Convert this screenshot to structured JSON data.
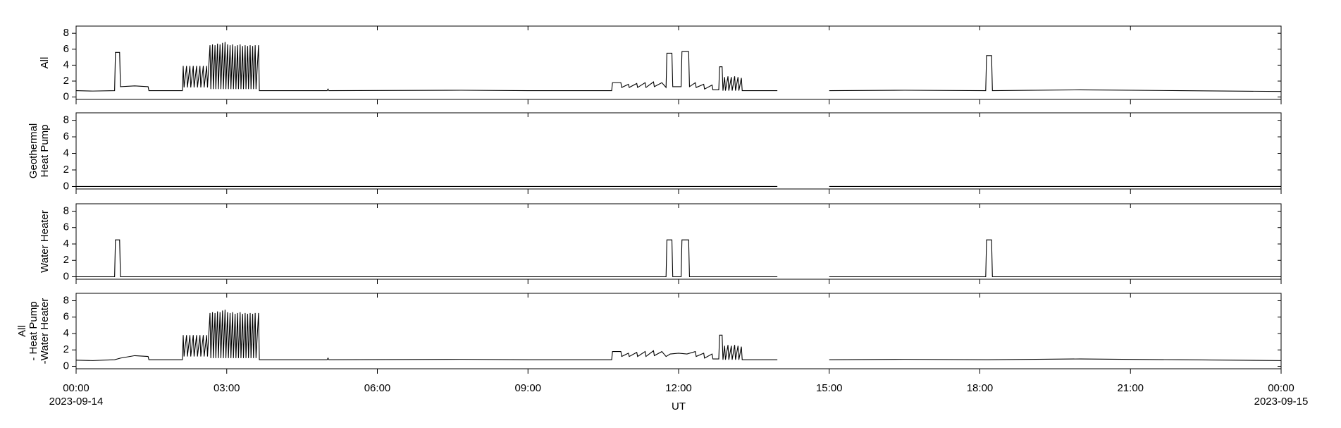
{
  "chart_data": [
    {
      "type": "line",
      "ylabel": [
        "All"
      ],
      "color": "#000000",
      "ylim": [
        -0.3,
        8.9
      ],
      "yticks": [
        0,
        2,
        4,
        6,
        8
      ],
      "xlim": [
        "00:00",
        "24:00"
      ],
      "x": [
        "00:00",
        "00:20",
        "00:46",
        "00:47",
        "00:52",
        "00:53",
        "01:10",
        "01:26",
        "01:27",
        "02:07",
        "02:08",
        "02:09",
        "02:12",
        "02:13",
        "02:16",
        "02:17",
        "02:20",
        "02:21",
        "02:24",
        "02:25",
        "02:28",
        "02:29",
        "02:32",
        "02:33",
        "02:36",
        "02:37",
        "02:40",
        "02:41",
        "02:43",
        "02:44",
        "02:46",
        "02:47",
        "02:49",
        "02:50",
        "02:52",
        "02:53",
        "02:55",
        "02:56",
        "02:58",
        "02:59",
        "03:01",
        "03:02",
        "03:04",
        "03:05",
        "03:07",
        "03:08",
        "03:10",
        "03:11",
        "03:13",
        "03:14",
        "03:16",
        "03:17",
        "03:19",
        "03:20",
        "03:22",
        "03:23",
        "03:25",
        "03:26",
        "03:28",
        "03:29",
        "03:31",
        "03:32",
        "03:34",
        "03:35",
        "03:38",
        "03:39",
        "05:00",
        "05:01",
        "05:02",
        "07:40",
        "09:00",
        "10:40",
        "10:41",
        "10:51",
        "10:52",
        "11:00",
        "11:01",
        "11:10",
        "11:11",
        "11:20",
        "11:21",
        "11:30",
        "11:31",
        "11:40",
        "11:45",
        "11:46",
        "11:52",
        "11:53",
        "12:03",
        "12:04",
        "12:12",
        "12:13",
        "12:20",
        "12:21",
        "12:30",
        "12:31",
        "12:40",
        "12:41",
        "12:48",
        "12:49",
        "12:52",
        "12:53",
        "12:55",
        "12:56",
        "12:59",
        "13:00",
        "13:03",
        "13:04",
        "13:07",
        "13:08",
        "13:11",
        "13:12",
        "13:15",
        "13:16",
        "13:58",
        "14:30",
        "15:00",
        "16:30",
        "18:07",
        "18:08",
        "18:14",
        "18:15",
        "20:00",
        "22:00",
        "24:00"
      ],
      "values": [
        0.8,
        0.75,
        0.8,
        5.6,
        5.6,
        1.3,
        1.4,
        1.3,
        0.8,
        0.8,
        3.9,
        1.2,
        3.9,
        1.2,
        3.9,
        1.2,
        3.9,
        1.2,
        3.9,
        1.2,
        3.9,
        1.2,
        3.9,
        1.2,
        3.9,
        1.2,
        6.5,
        1.0,
        6.6,
        1.0,
        6.5,
        1.0,
        6.7,
        1.0,
        6.6,
        1.0,
        6.8,
        1.0,
        6.9,
        1.0,
        6.6,
        1.0,
        6.5,
        1.0,
        6.6,
        1.0,
        6.4,
        1.0,
        6.5,
        1.0,
        6.6,
        1.0,
        6.4,
        1.0,
        6.5,
        1.0,
        6.4,
        1.0,
        6.5,
        1.0,
        6.4,
        1.0,
        6.5,
        1.0,
        6.5,
        0.8,
        0.8,
        1.0,
        0.8,
        0.85,
        0.8,
        0.8,
        1.8,
        1.8,
        1.2,
        1.6,
        1.2,
        1.7,
        1.2,
        1.8,
        1.2,
        1.9,
        1.3,
        1.8,
        1.2,
        5.5,
        5.5,
        1.3,
        1.3,
        5.7,
        5.7,
        1.3,
        1.8,
        1.2,
        1.6,
        1.0,
        1.5,
        0.9,
        0.9,
        3.8,
        3.8,
        0.8,
        2.5,
        0.8,
        2.6,
        0.8,
        2.5,
        0.8,
        2.6,
        0.8,
        2.5,
        0.8,
        2.4,
        0.8,
        0.8,
        null,
        0.8,
        0.85,
        0.8,
        5.2,
        5.2,
        0.8,
        0.9,
        0.8,
        0.7
      ]
    },
    {
      "type": "line",
      "ylabel": [
        "Geothermal",
        "Heat Pump"
      ],
      "color": "#000000",
      "ylim": [
        -0.3,
        8.9
      ],
      "yticks": [
        0,
        2,
        4,
        6,
        8
      ],
      "xlim": [
        "00:00",
        "24:00"
      ],
      "x": [
        "00:00",
        "13:58",
        "14:30",
        "15:00",
        "24:00"
      ],
      "values": [
        0,
        0,
        null,
        0,
        0
      ]
    },
    {
      "type": "line",
      "ylabel": [
        "Water Heater"
      ],
      "color": "#000000",
      "ylim": [
        -0.3,
        8.9
      ],
      "yticks": [
        0,
        2,
        4,
        6,
        8
      ],
      "xlim": [
        "00:00",
        "24:00"
      ],
      "x": [
        "00:00",
        "00:46",
        "00:47",
        "00:52",
        "00:53",
        "11:45",
        "11:46",
        "11:52",
        "11:53",
        "12:03",
        "12:04",
        "12:12",
        "12:13",
        "13:58",
        "14:30",
        "15:00",
        "18:07",
        "18:08",
        "18:14",
        "18:15",
        "24:00"
      ],
      "values": [
        0,
        0,
        4.5,
        4.5,
        0,
        0,
        4.5,
        4.5,
        0,
        0,
        4.5,
        4.5,
        0,
        0,
        null,
        0,
        0,
        4.5,
        4.5,
        0,
        0
      ]
    },
    {
      "type": "line",
      "ylabel": [
        "All",
        "- Heat Pump",
        "-Water Heater"
      ],
      "color": "#000000",
      "ylim": [
        -0.3,
        8.9
      ],
      "yticks": [
        0,
        2,
        4,
        6,
        8
      ],
      "xlim": [
        "00:00",
        "24:00"
      ],
      "xlabel": "UT",
      "xticks": [
        "00:00",
        "03:00",
        "06:00",
        "09:00",
        "12:00",
        "15:00",
        "18:00",
        "21:00",
        {
          "value": "24:00",
          "label": "00:00"
        }
      ],
      "date_labels": [
        {
          "value": "00:00",
          "label": "2023-09-14"
        },
        {
          "value": "24:00",
          "label": "2023-09-15"
        }
      ],
      "x": [
        "00:00",
        "00:20",
        "00:46",
        "00:53",
        "01:10",
        "01:26",
        "01:27",
        "02:07",
        "02:08",
        "02:09",
        "02:12",
        "02:13",
        "02:16",
        "02:17",
        "02:20",
        "02:21",
        "02:24",
        "02:25",
        "02:28",
        "02:29",
        "02:32",
        "02:33",
        "02:36",
        "02:37",
        "02:40",
        "02:41",
        "02:43",
        "02:44",
        "02:46",
        "02:47",
        "02:49",
        "02:50",
        "02:52",
        "02:53",
        "02:55",
        "02:56",
        "02:58",
        "02:59",
        "03:01",
        "03:02",
        "03:04",
        "03:05",
        "03:07",
        "03:08",
        "03:10",
        "03:11",
        "03:13",
        "03:14",
        "03:16",
        "03:17",
        "03:19",
        "03:20",
        "03:22",
        "03:23",
        "03:25",
        "03:26",
        "03:28",
        "03:29",
        "03:31",
        "03:32",
        "03:34",
        "03:35",
        "03:38",
        "03:39",
        "05:00",
        "05:01",
        "05:02",
        "07:40",
        "09:00",
        "10:40",
        "10:41",
        "10:51",
        "10:52",
        "11:00",
        "11:01",
        "11:10",
        "11:11",
        "11:20",
        "11:21",
        "11:30",
        "11:31",
        "11:40",
        "11:45",
        "11:50",
        "12:00",
        "12:10",
        "12:20",
        "12:21",
        "12:30",
        "12:31",
        "12:40",
        "12:41",
        "12:48",
        "12:49",
        "12:52",
        "12:53",
        "12:55",
        "12:56",
        "12:59",
        "13:00",
        "13:03",
        "13:04",
        "13:07",
        "13:08",
        "13:11",
        "13:12",
        "13:15",
        "13:16",
        "13:58",
        "14:30",
        "15:00",
        "16:30",
        "18:10",
        "20:00",
        "22:00",
        "24:00"
      ],
      "values": [
        0.75,
        0.7,
        0.8,
        1.0,
        1.3,
        1.2,
        0.8,
        0.8,
        3.8,
        1.2,
        3.8,
        1.2,
        3.8,
        1.2,
        3.8,
        1.2,
        3.8,
        1.2,
        3.8,
        1.2,
        3.8,
        1.2,
        3.8,
        1.2,
        6.5,
        1.0,
        6.6,
        1.0,
        6.5,
        1.0,
        6.7,
        1.0,
        6.6,
        1.0,
        6.8,
        1.0,
        6.9,
        1.0,
        6.6,
        1.0,
        6.5,
        1.0,
        6.6,
        1.0,
        6.4,
        1.0,
        6.5,
        1.0,
        6.6,
        1.0,
        6.4,
        1.0,
        6.5,
        1.0,
        6.4,
        1.0,
        6.5,
        1.0,
        6.4,
        1.0,
        6.5,
        1.0,
        6.5,
        0.8,
        0.8,
        1.0,
        0.8,
        0.85,
        0.8,
        0.8,
        1.8,
        1.8,
        1.2,
        1.6,
        1.2,
        1.7,
        1.2,
        1.8,
        1.2,
        1.9,
        1.3,
        1.8,
        1.2,
        1.5,
        1.6,
        1.5,
        1.8,
        1.2,
        1.6,
        1.0,
        1.5,
        0.9,
        0.9,
        3.8,
        3.8,
        0.8,
        2.5,
        0.8,
        2.6,
        0.8,
        2.5,
        0.8,
        2.6,
        0.8,
        2.5,
        0.8,
        2.4,
        0.8,
        0.8,
        null,
        0.8,
        0.85,
        0.8,
        0.9,
        0.8,
        0.7
      ]
    }
  ]
}
